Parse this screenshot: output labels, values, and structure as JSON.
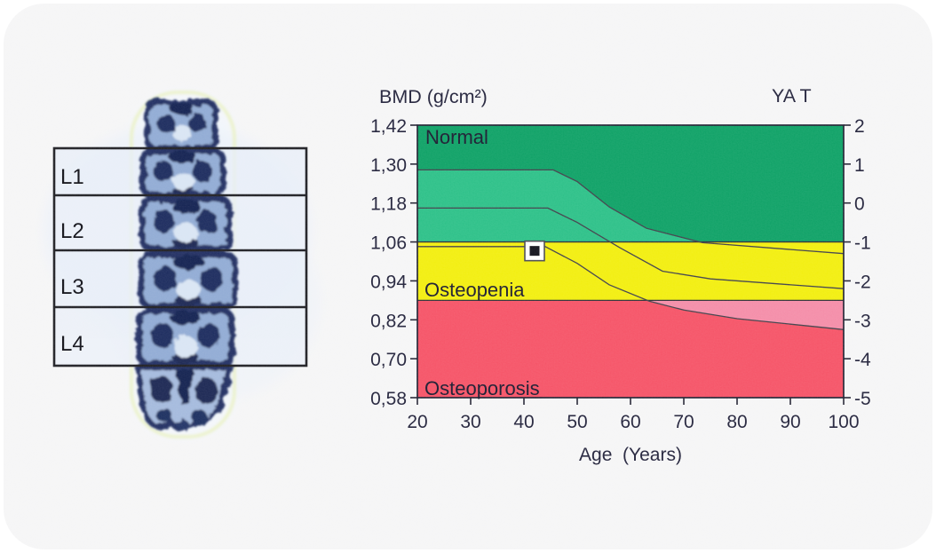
{
  "page": {
    "background": "#ffffff",
    "card_background": "#f5f5f6"
  },
  "spine_panel": {
    "description": "lumbar-spine-dxa-scan",
    "rois": [
      {
        "label": "L1"
      },
      {
        "label": "L2"
      },
      {
        "label": "L3"
      },
      {
        "label": "L4"
      }
    ]
  },
  "chart_data": {
    "type": "area",
    "title_left": "BMD (g/cm²)",
    "title_right": "YA T",
    "x_axis": {
      "label": "Age  (Years)",
      "ticks": [
        20,
        30,
        40,
        50,
        60,
        70,
        80,
        90,
        100
      ],
      "range": [
        20,
        100
      ]
    },
    "y_left_axis": {
      "units": "g/cm²",
      "ticks": [
        "1,42",
        "1,30",
        "1,18",
        "1,06",
        "0,94",
        "0,82",
        "0,70",
        "0,58"
      ],
      "range_bmd": [
        0.58,
        1.42
      ]
    },
    "y_right_axis": {
      "units": "T-score",
      "ticks": [
        "2",
        "1",
        "0",
        "-1",
        "-2",
        "-3",
        "-4",
        "-5"
      ],
      "range": [
        -5,
        2
      ]
    },
    "zones": [
      {
        "name": "Normal",
        "t_min": -1,
        "t_max": 2,
        "color": "#089f62"
      },
      {
        "name": "Osteopenia",
        "t_min": -2.5,
        "t_max": -1,
        "color": "#f2ee08"
      },
      {
        "name": "Osteoporosis",
        "t_min": -5,
        "t_max": -2.5,
        "color": "#f54f63"
      }
    ],
    "reference_band": {
      "in_normal_color": "#27bf85",
      "in_osteoporosis_color": "#f48aa6"
    },
    "curves": {
      "plus_1sd": [
        [
          20,
          0.85
        ],
        [
          45.5,
          0.85
        ],
        [
          50,
          0.55
        ],
        [
          56,
          -0.1
        ],
        [
          63,
          -0.65
        ],
        [
          73.5,
          -1.02
        ],
        [
          100,
          -1.3
        ]
      ],
      "mean": [
        [
          20,
          -0.13
        ],
        [
          44.5,
          -0.13
        ],
        [
          50,
          -0.5
        ],
        [
          58,
          -1.15
        ],
        [
          66,
          -1.75
        ],
        [
          75,
          -1.95
        ],
        [
          100,
          -2.2
        ]
      ],
      "minus_1sd": [
        [
          20,
          -1.12
        ],
        [
          44,
          -1.12
        ],
        [
          50,
          -1.55
        ],
        [
          56,
          -2.1
        ],
        [
          63.5,
          -2.52
        ],
        [
          70,
          -2.75
        ],
        [
          80,
          -2.97
        ],
        [
          100,
          -3.25
        ]
      ]
    },
    "patient_point": {
      "age": 42,
      "t_score": -1.23,
      "bmd": 1.03
    },
    "line_color": "#3d3d47",
    "boundary_line_color": "#2a2a35",
    "frame_color": "#1d1d2e",
    "text_color": "#1d1d36",
    "marker": {
      "outer": "#ffffff",
      "inner": "#0d0d17",
      "border": "#46464f"
    }
  }
}
